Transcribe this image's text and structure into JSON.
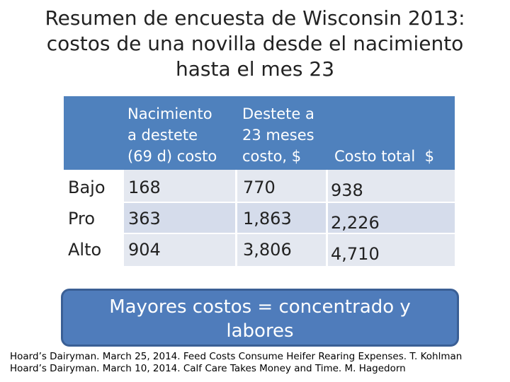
{
  "title_lines": [
    "Resumen de encuesta de Wisconsin 2013:",
    "costos de una novilla desde el nacimiento",
    "hasta el mes 23"
  ],
  "table": {
    "headers": [
      "",
      [
        "Nacimiento",
        "a destete",
        "(69 d) costo"
      ],
      [
        "Destete a",
        "23 meses",
        "costo, $"
      ],
      [
        "Costo total  $"
      ]
    ],
    "rows": [
      {
        "label": "Bajo",
        "birth_weaning": "168",
        "weaning_23": "770",
        "total": "938"
      },
      {
        "label": "Pro",
        "birth_weaning": "363",
        "weaning_23": "1,863",
        "total": "2,226"
      },
      {
        "label": "Alto",
        "birth_weaning": "904",
        "weaning_23": "3,806",
        "total": "4,710"
      }
    ]
  },
  "callout": [
    "Mayores costos = concentrado y",
    "labores"
  ],
  "references": [
    "Hoard’s Dairyman. March 25, 2014. Feed Costs Consume Heifer Rearing Expenses. T. Kohlman",
    "Hoard’s Dairyman. March 10, 2014. Calf Care Takes Money and Time. M. Hagedorn"
  ],
  "colors": {
    "header": "#4f81bd",
    "row_light": "#e4e8f0",
    "row_mid": "#d5dceb",
    "callout": "#4f7cbb"
  }
}
